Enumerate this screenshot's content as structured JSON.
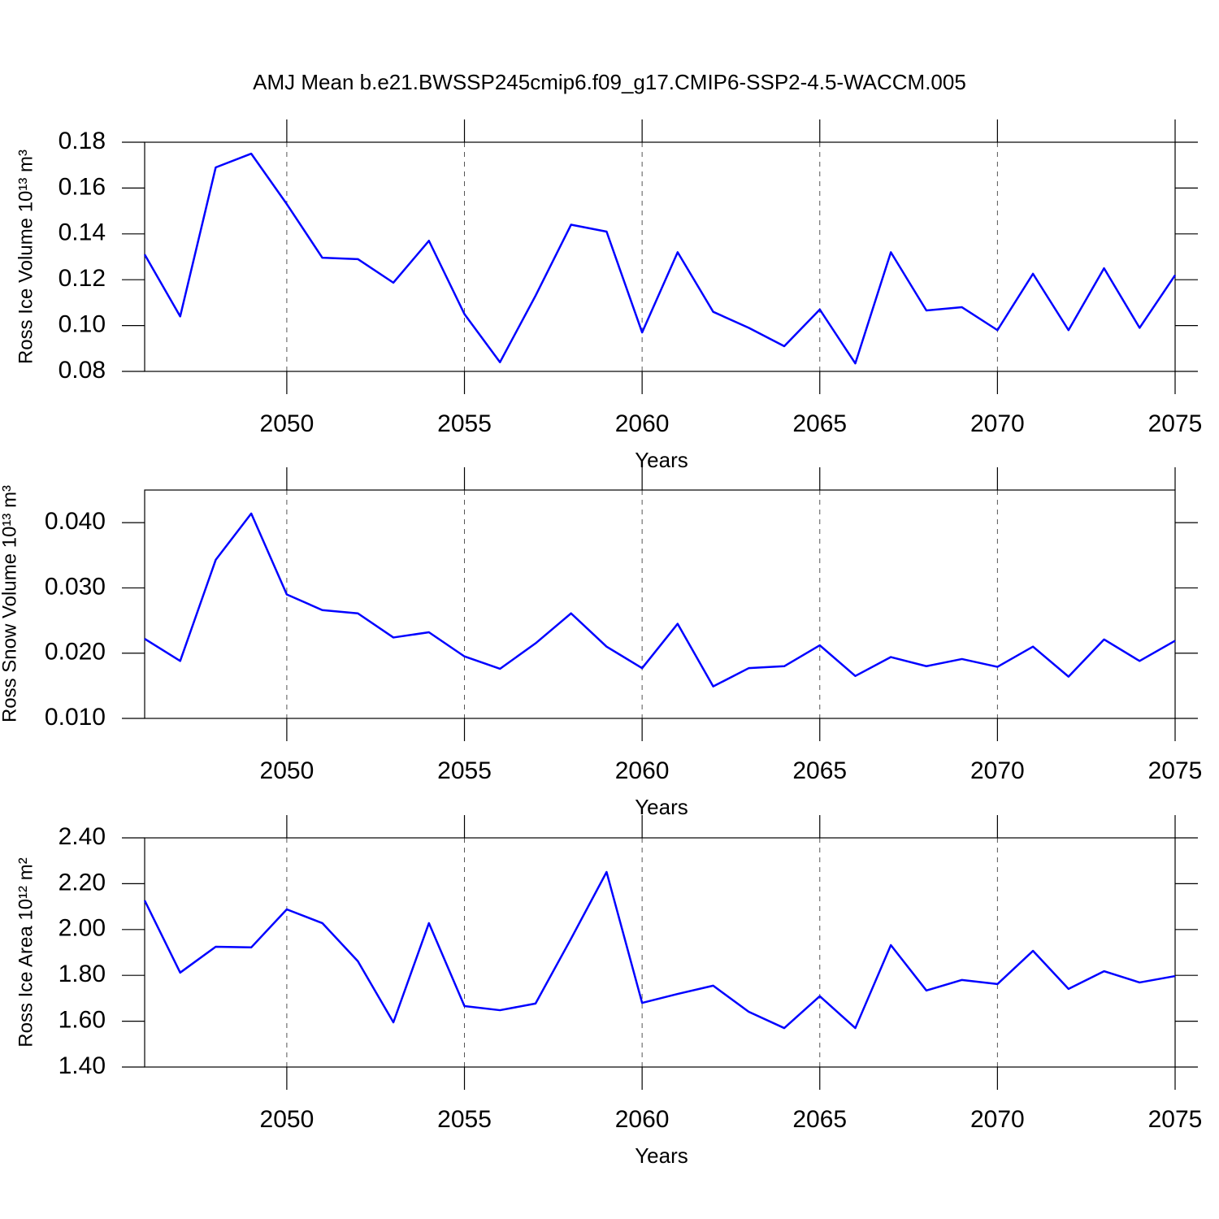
{
  "chart_data": [
    {
      "type": "line",
      "title": "AMJ Mean b.e21.BWSSP245cmip6.f09_g17.CMIP6-SSP2-4.5-WACCM.005",
      "ylabel": "Ross Ice Volume 10¹³ m³",
      "xlabel": "Years",
      "color": "#0000ff",
      "xgrid": true,
      "x": [
        2046,
        2047,
        2048,
        2049,
        2050,
        2051,
        2052,
        2053,
        2054,
        2055,
        2056,
        2057,
        2058,
        2059,
        2060,
        2061,
        2062,
        2063,
        2064,
        2065,
        2066,
        2067,
        2068,
        2069,
        2070,
        2071,
        2072,
        2073,
        2074,
        2075
      ],
      "values": [
        0.131,
        0.104,
        0.169,
        0.175,
        0.153,
        0.1296,
        0.129,
        0.1187,
        0.137,
        0.105,
        0.084,
        0.113,
        0.144,
        0.141,
        0.097,
        0.132,
        0.106,
        0.099,
        0.091,
        0.107,
        0.0835,
        0.132,
        0.1066,
        0.108,
        0.098,
        0.1226,
        0.098,
        0.125,
        0.099,
        0.122
      ],
      "xlim": [
        2046,
        2075
      ],
      "xticks": [
        2050,
        2055,
        2060,
        2065,
        2070,
        2075
      ],
      "ylim": [
        0.08,
        0.18
      ],
      "yticks": [
        0.08,
        {
          "value": 0.1,
          "label": "0.10"
        },
        0.12,
        0.14,
        0.16,
        0.18
      ]
    },
    {
      "type": "line",
      "ylabel": "Ross Snow Volume 10¹³ m³",
      "xlabel": "Years",
      "color": "#0000ff",
      "xgrid": true,
      "x": [
        2046,
        2047,
        2048,
        2049,
        2050,
        2051,
        2052,
        2053,
        2054,
        2055,
        2056,
        2057,
        2058,
        2059,
        2060,
        2061,
        2062,
        2063,
        2064,
        2065,
        2066,
        2067,
        2068,
        2069,
        2070,
        2071,
        2072,
        2073,
        2074,
        2075
      ],
      "values": [
        0.0222,
        0.0188,
        0.0343,
        0.0414,
        0.029,
        0.0266,
        0.0261,
        0.0224,
        0.0232,
        0.0195,
        0.0176,
        0.0215,
        0.0261,
        0.021,
        0.0177,
        0.0245,
        0.0149,
        0.0177,
        0.018,
        0.0212,
        0.0165,
        0.0194,
        0.018,
        0.0191,
        0.0179,
        0.021,
        0.0164,
        0.0221,
        0.0188,
        0.0219
      ],
      "xlim": [
        2046,
        2075
      ],
      "xticks": [
        2050,
        2055,
        2060,
        2065,
        2070,
        2075
      ],
      "ylim": [
        0.01,
        0.045
      ],
      "yticks": [
        {
          "value": 0.01,
          "label": "0.010"
        },
        {
          "value": 0.02,
          "label": "0.020"
        },
        {
          "value": 0.03,
          "label": "0.030"
        },
        {
          "value": 0.04,
          "label": "0.040"
        }
      ]
    },
    {
      "type": "line",
      "ylabel": "Ross Ice Area 10¹² m²",
      "xlabel": "Years",
      "color": "#0000ff",
      "xgrid": true,
      "x": [
        2046,
        2047,
        2048,
        2049,
        2050,
        2051,
        2052,
        2053,
        2054,
        2055,
        2056,
        2057,
        2058,
        2059,
        2060,
        2061,
        2062,
        2063,
        2064,
        2065,
        2066,
        2067,
        2068,
        2069,
        2070,
        2071,
        2072,
        2073,
        2074,
        2075
      ],
      "values": [
        2.127,
        1.812,
        1.925,
        1.922,
        2.088,
        2.028,
        1.862,
        1.595,
        2.028,
        1.666,
        1.648,
        1.677,
        1.96,
        2.251,
        1.68,
        1.719,
        1.755,
        1.641,
        1.57,
        1.709,
        1.57,
        1.932,
        1.734,
        1.78,
        1.762,
        1.907,
        1.741,
        1.818,
        1.769,
        1.797
      ],
      "xlim": [
        2046,
        2075
      ],
      "xticks": [
        2050,
        2055,
        2060,
        2065,
        2070,
        2075
      ],
      "ylim": [
        1.4,
        2.4
      ],
      "yticks": [
        {
          "value": 1.4,
          "label": "1.40"
        },
        {
          "value": 1.6,
          "label": "1.60"
        },
        {
          "value": 1.8,
          "label": "1.80"
        },
        {
          "value": 2.0,
          "label": "2.00"
        },
        {
          "value": 2.2,
          "label": "2.20"
        },
        {
          "value": 2.4,
          "label": "2.40"
        }
      ]
    }
  ]
}
